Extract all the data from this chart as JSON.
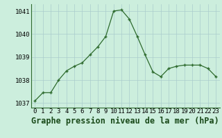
{
  "x": [
    0,
    1,
    2,
    3,
    4,
    5,
    6,
    7,
    8,
    9,
    10,
    11,
    12,
    13,
    14,
    15,
    16,
    17,
    18,
    19,
    20,
    21,
    22,
    23
  ],
  "y": [
    1037.1,
    1037.45,
    1037.45,
    1038.0,
    1038.4,
    1038.6,
    1038.75,
    1039.1,
    1039.45,
    1039.9,
    1041.0,
    1041.05,
    1040.65,
    1039.9,
    1039.1,
    1038.35,
    1038.15,
    1038.5,
    1038.6,
    1038.65,
    1038.65,
    1038.65,
    1038.5,
    1038.15
  ],
  "line_color": "#2d6a2d",
  "marker_color": "#2d6a2d",
  "bg_color": "#cceedd",
  "grid_color": "#aacccc",
  "axis_color": "#2d6a2d",
  "title": "Graphe pression niveau de la mer (hPa)",
  "ylim": [
    1036.8,
    1041.3
  ],
  "yticks": [
    1037,
    1038,
    1039,
    1040,
    1041
  ],
  "xticks": [
    0,
    1,
    2,
    3,
    4,
    5,
    6,
    7,
    8,
    9,
    10,
    11,
    12,
    13,
    14,
    15,
    16,
    17,
    18,
    19,
    20,
    21,
    22,
    23
  ],
  "title_fontsize": 8.5,
  "tick_fontsize": 6.5
}
